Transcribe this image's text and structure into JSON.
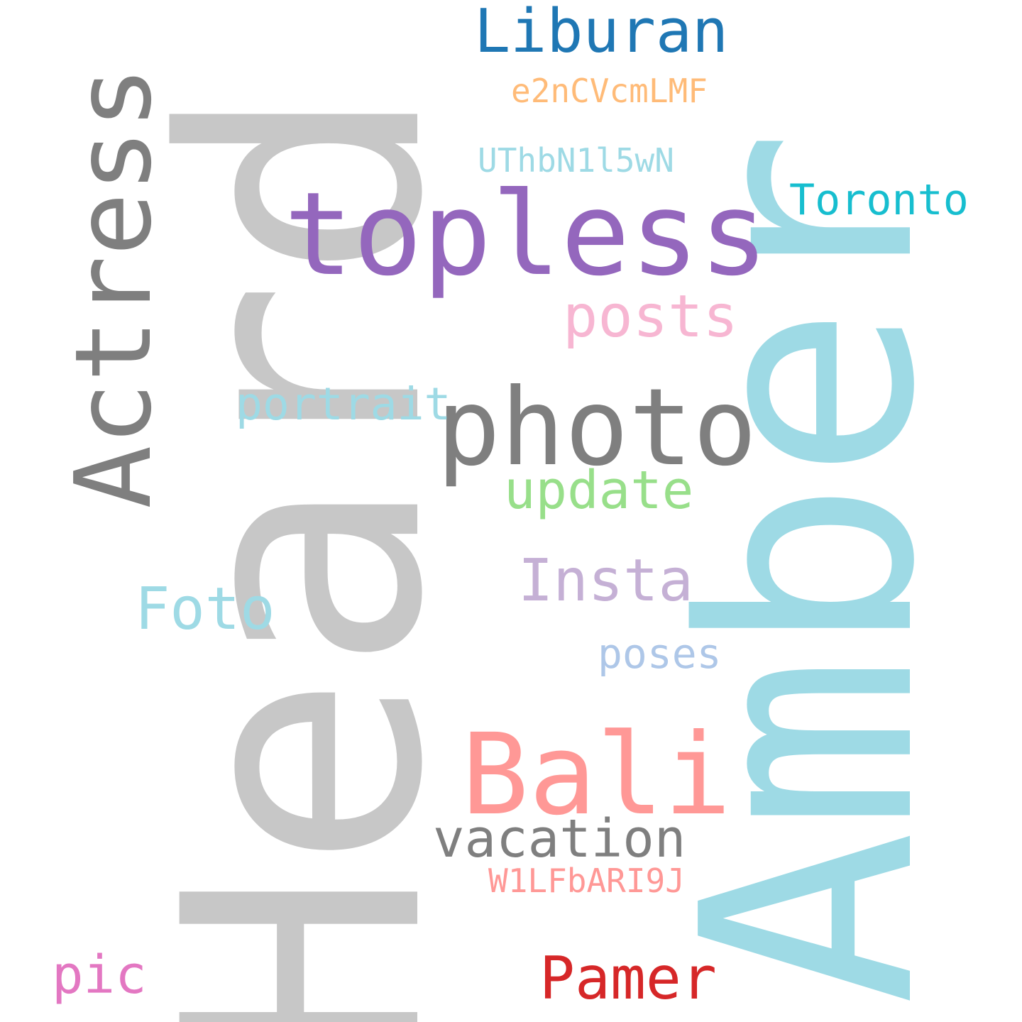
{
  "word_cloud": {
    "words": [
      {
        "id": "heard",
        "text": "Heard",
        "color": "#c7c7c7",
        "orientation": "vertical"
      },
      {
        "id": "amber",
        "text": "Amber",
        "color": "#9edae5",
        "orientation": "vertical"
      },
      {
        "id": "actress",
        "text": "Actress",
        "color": "#7f7f7f",
        "orientation": "vertical"
      },
      {
        "id": "topless",
        "text": "topless",
        "color": "#9467bd",
        "orientation": "horizontal"
      },
      {
        "id": "photo",
        "text": "photo",
        "color": "#7f7f7f",
        "orientation": "horizontal"
      },
      {
        "id": "bali",
        "text": "Bali",
        "color": "#ff9896",
        "orientation": "horizontal"
      },
      {
        "id": "liburan",
        "text": "Liburan",
        "color": "#1f77b4",
        "orientation": "horizontal"
      },
      {
        "id": "posts",
        "text": "posts",
        "color": "#f7b6d2",
        "orientation": "horizontal"
      },
      {
        "id": "update",
        "text": "update",
        "color": "#98df8a",
        "orientation": "horizontal"
      },
      {
        "id": "portrait",
        "text": "portrait",
        "color": "#9edae5",
        "orientation": "horizontal"
      },
      {
        "id": "insta",
        "text": "Insta",
        "color": "#c5b0d5",
        "orientation": "horizontal"
      },
      {
        "id": "foto",
        "text": "Foto",
        "color": "#9edae5",
        "orientation": "horizontal"
      },
      {
        "id": "poses",
        "text": "poses",
        "color": "#aec7e8",
        "orientation": "horizontal"
      },
      {
        "id": "vacation",
        "text": "vacation",
        "color": "#7f7f7f",
        "orientation": "horizontal"
      },
      {
        "id": "toronto",
        "text": "Toronto",
        "color": "#17becf",
        "orientation": "horizontal"
      },
      {
        "id": "e2n",
        "text": "e2nCVcmLMF",
        "color": "#ffbb78",
        "orientation": "horizontal"
      },
      {
        "id": "uth",
        "text": "UThbN1l5wN",
        "color": "#9edae5",
        "orientation": "horizontal"
      },
      {
        "id": "w1l",
        "text": "W1LFbARI9J",
        "color": "#ff9896",
        "orientation": "horizontal"
      },
      {
        "id": "pamer",
        "text": "Pamer",
        "color": "#d62728",
        "orientation": "horizontal"
      },
      {
        "id": "pic",
        "text": "pic",
        "color": "#e377c2",
        "orientation": "horizontal"
      }
    ]
  }
}
